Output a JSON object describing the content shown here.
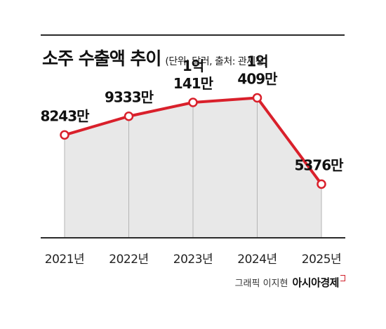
{
  "title": "소주 수출액 추이",
  "unit_note": "(단위: 달러, 출처: 관세청)",
  "credit": {
    "byline": "그래픽 이지현",
    "brand": "아시아경제"
  },
  "colors": {
    "line": "#d9202b",
    "area": "#e8e8e8",
    "marker_fill": "#ffffff",
    "text": "#111111"
  },
  "chart_data": {
    "type": "area",
    "title": "소주 수출액 추이",
    "subtitle": "(단위: 달러, 출처: 관세청)",
    "categories": [
      "2021년",
      "2022년",
      "2023년",
      "2024년",
      "2025년"
    ],
    "values": [
      82430000,
      93330000,
      101410000,
      104090000,
      53760000
    ],
    "data_labels": [
      [
        "8243만"
      ],
      [
        "9333만"
      ],
      [
        "1억",
        "141만"
      ],
      [
        "1억",
        "409만"
      ],
      [
        "5376만"
      ]
    ],
    "ylim": [
      20000000,
      110000000
    ],
    "grid": "vertical drop lines",
    "legend": "none"
  }
}
